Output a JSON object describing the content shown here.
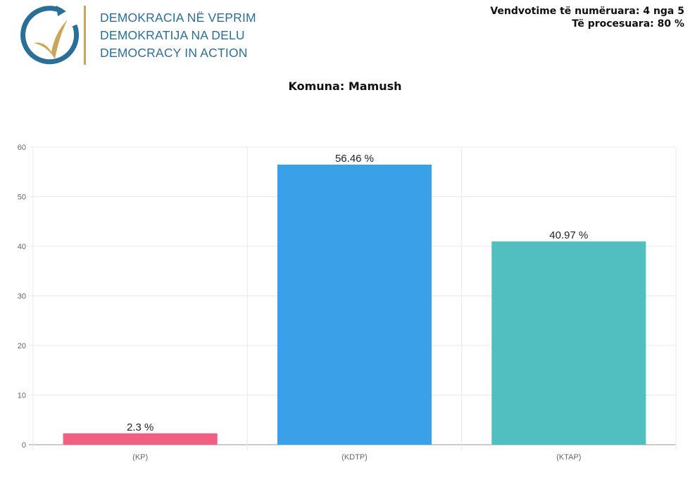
{
  "header": {
    "logo_lines": [
      "DEMOKRACIA NË VEPRIM",
      "DEMOKRATIJA NA DELU",
      "DEMOCRACY IN ACTION"
    ],
    "status_counted": "Vendvotime të numëruara: 4 nga 5",
    "status_processed": "Të procesuara: 80 %",
    "colors": {
      "logo_blue": "#2a6f97",
      "logo_gold": "#c9a65a"
    }
  },
  "chart_data": {
    "type": "bar",
    "title": "Komuna: Mamush",
    "categories": [
      "(KP)",
      "(KDTP)",
      "(KTAP)"
    ],
    "values": [
      2.3,
      56.46,
      40.97
    ],
    "data_labels": [
      "2.3 %",
      "56.46 %",
      "40.97 %"
    ],
    "colors": [
      "#ef6082",
      "#3aa0e8",
      "#51bfc0"
    ],
    "ylim": [
      0,
      60
    ],
    "yticks": [
      0,
      10,
      20,
      30,
      40,
      50,
      60
    ],
    "grid": true,
    "xlabel": "",
    "ylabel": ""
  }
}
